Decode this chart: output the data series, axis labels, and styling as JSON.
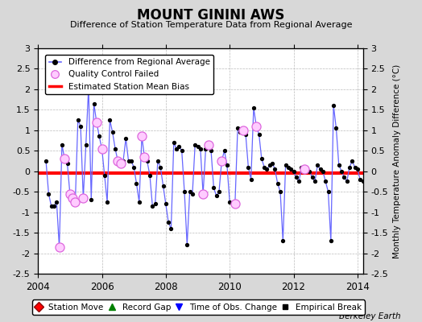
{
  "title": "MOUNT GININI AWS",
  "subtitle": "Difference of Station Temperature Data from Regional Average",
  "ylabel": "Monthly Temperature Anomaly Difference (°C)",
  "xlim": [
    2004.0,
    2014.17
  ],
  "ylim": [
    -2.5,
    3.0
  ],
  "yticks": [
    -2.5,
    -2,
    -1.5,
    -1,
    -0.5,
    0,
    0.5,
    1,
    1.5,
    2,
    2.5,
    3
  ],
  "ytick_labels": [
    "-2.5",
    "-2",
    "-1.5",
    "-1",
    "-0.5",
    "0",
    "0.5",
    "1",
    "1.5",
    "2",
    "2.5",
    "3"
  ],
  "xticks": [
    2004,
    2006,
    2008,
    2010,
    2012,
    2014
  ],
  "bias_line": -0.05,
  "bias_color": "#ff0000",
  "line_color": "#6666ff",
  "marker_color": "#000000",
  "bg_color": "#d8d8d8",
  "plot_bg": "#ffffff",
  "berkeley_earth_label": "Berkeley Earth",
  "time_series": [
    0.25,
    -0.55,
    -0.85,
    -0.85,
    -0.75,
    -1.85,
    0.65,
    0.3,
    0.2,
    -0.55,
    -0.65,
    -0.75,
    1.25,
    1.1,
    -0.65,
    0.65,
    2.05,
    -0.7,
    1.65,
    1.2,
    0.85,
    0.55,
    -0.1,
    -0.75,
    1.25,
    0.95,
    0.55,
    0.25,
    0.2,
    0.25,
    0.8,
    0.25,
    0.25,
    0.1,
    -0.3,
    -0.75,
    0.85,
    0.35,
    0.25,
    -0.1,
    -0.85,
    -0.8,
    0.25,
    0.1,
    -0.35,
    -0.8,
    -1.25,
    -1.4,
    0.7,
    0.55,
    0.6,
    0.5,
    -0.5,
    -1.8,
    -0.5,
    -0.55,
    0.65,
    0.6,
    0.55,
    -0.55,
    0.55,
    0.65,
    0.5,
    -0.4,
    -0.6,
    -0.5,
    0.25,
    0.5,
    0.15,
    -0.75,
    -0.8,
    -0.8,
    1.05,
    0.95,
    1.0,
    0.9,
    0.1,
    -0.2,
    1.55,
    1.1,
    0.9,
    0.3,
    0.1,
    0.05,
    0.15,
    0.2,
    0.05,
    -0.3,
    -0.5,
    -1.7,
    0.15,
    0.1,
    0.05,
    0.0,
    -0.15,
    -0.25,
    0.1,
    0.05,
    0.05,
    0.0,
    -0.15,
    -0.25,
    0.15,
    0.05,
    0.0,
    -0.25,
    -0.5,
    -1.7,
    1.6,
    1.05,
    0.15,
    0.0,
    -0.15,
    -0.25,
    0.1,
    0.25,
    0.1,
    0.05,
    -0.2,
    -0.25
  ],
  "qc_failed_indices": [
    5,
    7,
    9,
    10,
    11,
    14,
    16,
    19,
    21,
    27,
    28,
    36,
    37,
    59,
    61,
    66,
    71,
    74,
    79,
    97
  ],
  "t_start": 2004.25,
  "n_months": 120
}
